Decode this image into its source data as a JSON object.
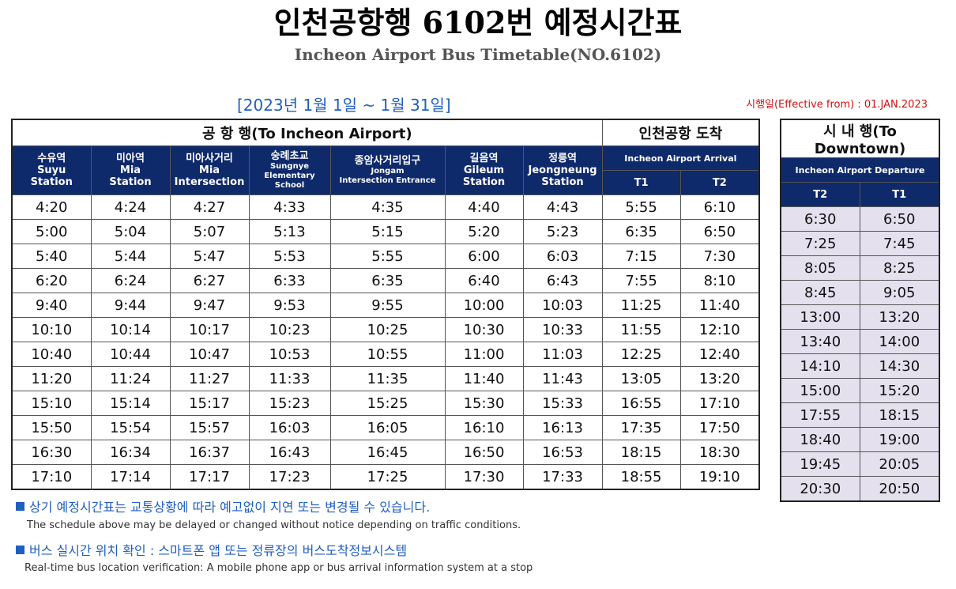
{
  "header": {
    "title": "인천공항행 6102번 예정시간표",
    "subtitle": "Incheon Airport Bus Timetable(NO.6102)",
    "period": "[2023년 1월 1일 ~ 1월 31일]",
    "effective": "시행일(Effective from) : 01.JAN.2023"
  },
  "to_airport": {
    "heading": "공 항 행(To Incheon Airport)",
    "arrival_heading": "인천공항 도착",
    "arrival_sub": "Incheon Airport Arrival",
    "stations": [
      {
        "ko": "수유역",
        "en1": "Suyu",
        "en2": "Station"
      },
      {
        "ko": "미아역",
        "en1": "Mia",
        "en2": "Station"
      },
      {
        "ko": "미아사거리",
        "en1": "Mia",
        "en2": "Intersection"
      },
      {
        "ko": "숭례초교",
        "en1": "Sungnye",
        "en2": "Elementary School"
      },
      {
        "ko": "종암사거리입구",
        "en1": "Jongam",
        "en2": "Intersection Entrance"
      },
      {
        "ko": "길음역",
        "en1": "Gileum",
        "en2": "Station"
      },
      {
        "ko": "정릉역",
        "en1": "Jeongneung",
        "en2": "Station"
      }
    ],
    "terminals": [
      "T1",
      "T2"
    ],
    "rows": [
      [
        "4:20",
        "4:24",
        "4:27",
        "4:33",
        "4:35",
        "4:40",
        "4:43",
        "5:55",
        "6:10"
      ],
      [
        "5:00",
        "5:04",
        "5:07",
        "5:13",
        "5:15",
        "5:20",
        "5:23",
        "6:35",
        "6:50"
      ],
      [
        "5:40",
        "5:44",
        "5:47",
        "5:53",
        "5:55",
        "6:00",
        "6:03",
        "7:15",
        "7:30"
      ],
      [
        "6:20",
        "6:24",
        "6:27",
        "6:33",
        "6:35",
        "6:40",
        "6:43",
        "7:55",
        "8:10"
      ],
      [
        "9:40",
        "9:44",
        "9:47",
        "9:53",
        "9:55",
        "10:00",
        "10:03",
        "11:25",
        "11:40"
      ],
      [
        "10:10",
        "10:14",
        "10:17",
        "10:23",
        "10:25",
        "10:30",
        "10:33",
        "11:55",
        "12:10"
      ],
      [
        "10:40",
        "10:44",
        "10:47",
        "10:53",
        "10:55",
        "11:00",
        "11:03",
        "12:25",
        "12:40"
      ],
      [
        "11:20",
        "11:24",
        "11:27",
        "11:33",
        "11:35",
        "11:40",
        "11:43",
        "13:05",
        "13:20"
      ],
      [
        "15:10",
        "15:14",
        "15:17",
        "15:23",
        "15:25",
        "15:30",
        "15:33",
        "16:55",
        "17:10"
      ],
      [
        "15:50",
        "15:54",
        "15:57",
        "16:03",
        "16:05",
        "16:10",
        "16:13",
        "17:35",
        "17:50"
      ],
      [
        "16:30",
        "16:34",
        "16:37",
        "16:43",
        "16:45",
        "16:50",
        "16:53",
        "18:15",
        "18:30"
      ],
      [
        "17:10",
        "17:14",
        "17:17",
        "17:23",
        "17:25",
        "17:30",
        "17:33",
        "18:55",
        "19:10"
      ]
    ]
  },
  "to_downtown": {
    "heading": "시 내 행(To Downtown)",
    "departure_sub": "Incheon Airport Departure",
    "terminals": [
      "T2",
      "T1"
    ],
    "rows": [
      [
        "6:30",
        "6:50"
      ],
      [
        "7:25",
        "7:45"
      ],
      [
        "8:05",
        "8:25"
      ],
      [
        "8:45",
        "9:05"
      ],
      [
        "13:00",
        "13:20"
      ],
      [
        "13:40",
        "14:00"
      ],
      [
        "14:10",
        "14:30"
      ],
      [
        "15:00",
        "15:20"
      ],
      [
        "17:55",
        "18:15"
      ],
      [
        "18:40",
        "19:00"
      ],
      [
        "19:45",
        "20:05"
      ],
      [
        "20:30",
        "20:50"
      ]
    ]
  },
  "notes": [
    {
      "ko": "상기 예정시간표는 교통상황에 따라 예고없이 지연 또는 변경될 수 있습니다.",
      "en": "The schedule above may be delayed or changed without notice depending on traffic conditions."
    },
    {
      "ko": "버스 실시간 위치 확인 : 스마트폰 앱 또는 정류장의 버스도착정보시스템",
      "en": "Real-time bus location verification: A mobile phone app or bus arrival information system at a stop"
    }
  ],
  "colors": {
    "header_navy": "#0f2a6b",
    "accent_blue": "#1f5fbf",
    "effective_red": "#d01010",
    "downtown_bg": "#e4e0ee"
  }
}
